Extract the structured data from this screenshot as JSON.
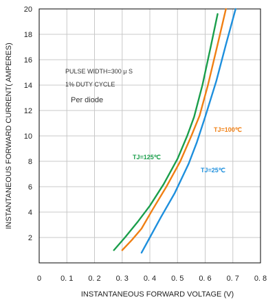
{
  "chart_data": {
    "type": "line",
    "title": "",
    "xlabel": "INSTANTANEOUS FORWARD VOLTAGE (V)",
    "ylabel": "INSTANTANEOUS FORWARD CURRENT( AMPERES)",
    "xlim": [
      0,
      0.8
    ],
    "ylim": [
      0,
      20
    ],
    "x_tick_labels": [
      "0",
      "0. 1",
      "0. 2",
      "0. 3",
      "0. 4",
      "0. 5",
      "0. 6",
      "0. 7",
      "0. 8"
    ],
    "y_tick_labels": [
      "2",
      "4",
      "6",
      "8",
      "10",
      "12",
      "14",
      "16",
      "18",
      "20"
    ],
    "grid": true,
    "annotations": [
      "PULSE WIDTH=300 μ S",
      "1% DUTY CYCLE",
      "Per diode"
    ],
    "series": [
      {
        "name": "TJ=125℃",
        "color": "#1a9e4b",
        "points": [
          [
            0.27,
            1.0
          ],
          [
            0.31,
            2.0
          ],
          [
            0.355,
            3.2
          ],
          [
            0.4,
            4.5
          ],
          [
            0.45,
            6.2
          ],
          [
            0.5,
            8.2
          ],
          [
            0.535,
            10.0
          ],
          [
            0.56,
            11.5
          ],
          [
            0.59,
            14.0
          ],
          [
            0.62,
            17.0
          ],
          [
            0.645,
            19.6
          ]
        ]
      },
      {
        "name": "TJ=100℃",
        "color": "#f07f13",
        "points": [
          [
            0.3,
            1.0
          ],
          [
            0.335,
            1.8
          ],
          [
            0.37,
            2.7
          ],
          [
            0.41,
            4.2
          ],
          [
            0.46,
            6.0
          ],
          [
            0.51,
            8.0
          ],
          [
            0.55,
            10.0
          ],
          [
            0.58,
            11.6
          ],
          [
            0.61,
            14.0
          ],
          [
            0.645,
            17.2
          ],
          [
            0.675,
            20.0
          ]
        ]
      },
      {
        "name": "TJ=25℃",
        "color": "#1d8fdd",
        "points": [
          [
            0.37,
            0.8
          ],
          [
            0.4,
            2.0
          ],
          [
            0.44,
            3.6
          ],
          [
            0.49,
            5.5
          ],
          [
            0.54,
            7.8
          ],
          [
            0.57,
            9.5
          ],
          [
            0.6,
            11.5
          ],
          [
            0.64,
            14.3
          ],
          [
            0.675,
            17.2
          ],
          [
            0.71,
            20.0
          ]
        ]
      }
    ]
  }
}
